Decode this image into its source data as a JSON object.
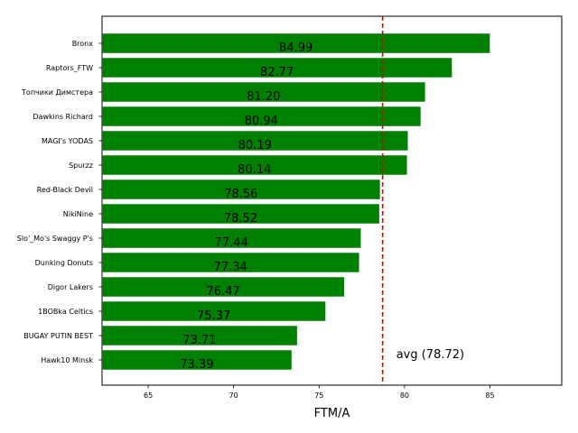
{
  "chart_data": {
    "type": "bar",
    "orientation": "horizontal",
    "title": "",
    "xlabel": "FTM/A",
    "ylabel": "",
    "xlim": [
      62.3,
      89.2
    ],
    "xticks": [
      65,
      70,
      75,
      80,
      85
    ],
    "bar_color": "#008000",
    "grid": false,
    "categories": [
      "Bronx",
      "Raptors_FTW",
      "Топчики Димстера",
      "Dawkins Richard",
      "MAGI's YODAS",
      "Spurzz",
      "Red-Black Devil",
      "NikiNine",
      "Slo'_Mo's Swaggy P's",
      "Dunking Donuts",
      "Digor Lakers",
      "1BOBka Celtics",
      "BUGAY PUTIN BEST",
      "Hawk10 Minsk"
    ],
    "values": [
      84.99,
      82.77,
      81.2,
      80.94,
      80.19,
      80.14,
      78.56,
      78.52,
      77.44,
      77.34,
      76.47,
      75.37,
      73.71,
      73.39
    ],
    "value_labels": [
      "84.99",
      "82.77",
      "81.20",
      "80.94",
      "80.19",
      "80.14",
      "78.56",
      "78.52",
      "77.44",
      "77.34",
      "76.47",
      "75.37",
      "73.71",
      "73.39"
    ],
    "average": {
      "value": 78.72,
      "label": "avg (78.72)",
      "color": "#e00000",
      "style": "dashed"
    }
  }
}
